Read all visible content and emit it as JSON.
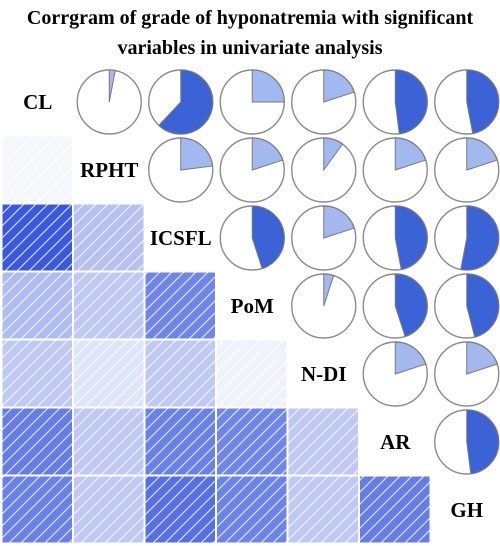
{
  "chart_data": {
    "type": "heatmap",
    "title": [
      "Corrgram of grade of hyponatremia with significant",
      "variables in univariate analysis"
    ],
    "variables": [
      "CL",
      "RPHT",
      "ICSFL",
      "PoM",
      "N-DI",
      "AR",
      "GH"
    ],
    "lower_panel": "shaded squares (shade intensity = correlation strength, hatched)",
    "upper_panel": "pie charts (filled fraction = correlation strength)",
    "color_positive": "#3a5fcd",
    "correlations": [
      {
        "row": "CL",
        "col": "RPHT",
        "value": 0.03
      },
      {
        "row": "CL",
        "col": "ICSFL",
        "value": 0.62
      },
      {
        "row": "CL",
        "col": "PoM",
        "value": 0.25
      },
      {
        "row": "CL",
        "col": "N-DI",
        "value": 0.2
      },
      {
        "row": "CL",
        "col": "AR",
        "value": 0.48
      },
      {
        "row": "CL",
        "col": "GH",
        "value": 0.47
      },
      {
        "row": "RPHT",
        "col": "ICSFL",
        "value": 0.23
      },
      {
        "row": "RPHT",
        "col": "PoM",
        "value": 0.2
      },
      {
        "row": "RPHT",
        "col": "N-DI",
        "value": 0.1
      },
      {
        "row": "RPHT",
        "col": "AR",
        "value": 0.2
      },
      {
        "row": "RPHT",
        "col": "GH",
        "value": 0.2
      },
      {
        "row": "ICSFL",
        "col": "PoM",
        "value": 0.45
      },
      {
        "row": "ICSFL",
        "col": "N-DI",
        "value": 0.2
      },
      {
        "row": "ICSFL",
        "col": "AR",
        "value": 0.47
      },
      {
        "row": "ICSFL",
        "col": "GH",
        "value": 0.53
      },
      {
        "row": "PoM",
        "col": "N-DI",
        "value": 0.05
      },
      {
        "row": "PoM",
        "col": "AR",
        "value": 0.45
      },
      {
        "row": "PoM",
        "col": "GH",
        "value": 0.46
      },
      {
        "row": "N-DI",
        "col": "AR",
        "value": 0.2
      },
      {
        "row": "N-DI",
        "col": "GH",
        "value": 0.2
      },
      {
        "row": "AR",
        "col": "GH",
        "value": 0.48
      }
    ]
  }
}
